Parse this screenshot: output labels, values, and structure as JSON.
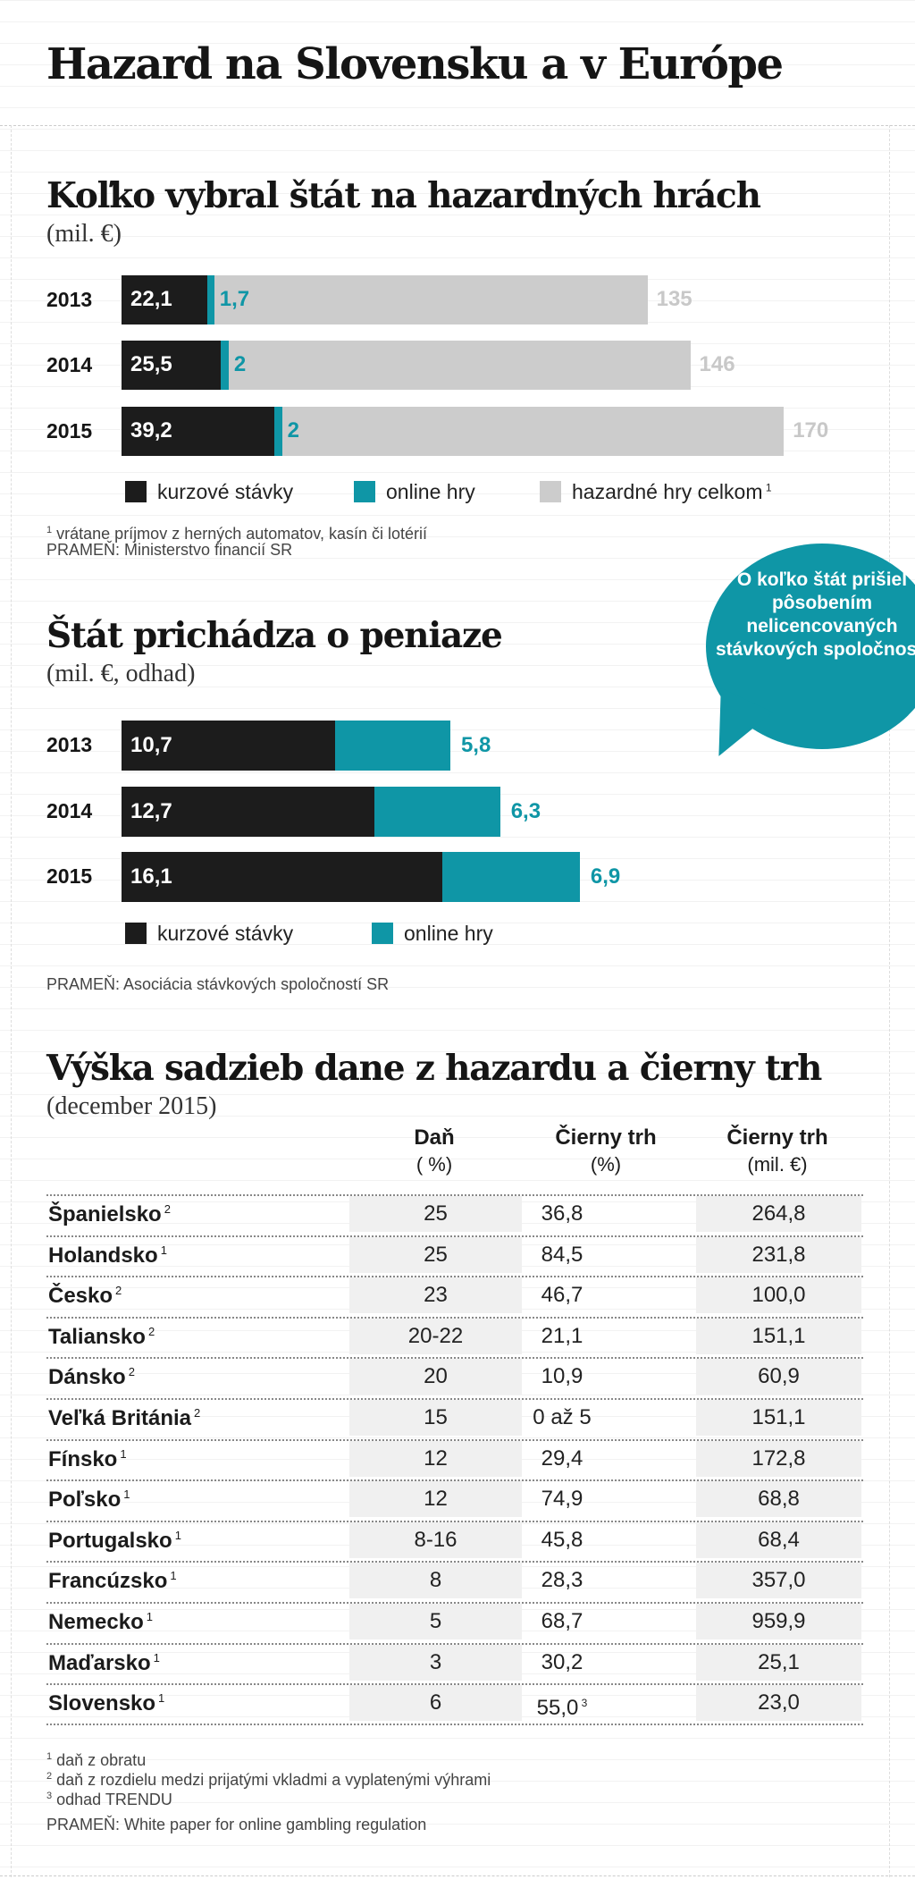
{
  "title": "Hazard na Slovensku a v Európe",
  "chart_data": [
    {
      "type": "bar",
      "title": "Koľko vybral štát na hazardných hrách",
      "subtitle": "(mil. €)",
      "categories": [
        "2013",
        "2014",
        "2015"
      ],
      "series": [
        {
          "name": "kurzové stávky",
          "values": [
            22.1,
            25.5,
            39.2
          ],
          "labels": [
            "22,1",
            "25,5",
            "39,2"
          ],
          "color": "#1c1c1c"
        },
        {
          "name": "online hry",
          "values": [
            1.7,
            2,
            2
          ],
          "labels": [
            "1,7",
            "2",
            "2"
          ],
          "color": "#0f96a6"
        },
        {
          "name": "hazardné hry celkom",
          "values": [
            135,
            146,
            170
          ],
          "labels": [
            "135",
            "146",
            "170"
          ],
          "color": "#cccccc"
        }
      ],
      "legend": [
        {
          "label": "kurzové stávky",
          "color": "#1c1c1c"
        },
        {
          "label": "online hry",
          "color": "#0f96a6"
        },
        {
          "label": "hazardné hry celkom",
          "sup": "1",
          "color": "#cccccc"
        }
      ],
      "notes": [
        "vrátane príjmov z herných automatov, kasín či lotérií"
      ],
      "note_sup": "1",
      "source": "PRAMEŇ: Ministerstvo financií SR"
    },
    {
      "type": "bar",
      "title": "Štát prichádza o peniaze",
      "subtitle": "(mil. €, odhad)",
      "categories": [
        "2013",
        "2014",
        "2015"
      ],
      "series": [
        {
          "name": "kurzové stávky",
          "values": [
            10.7,
            12.7,
            16.1
          ],
          "labels": [
            "10,7",
            "12,7",
            "16,1"
          ],
          "color": "#1c1c1c"
        },
        {
          "name": "online hry",
          "values": [
            5.8,
            6.3,
            6.9
          ],
          "labels": [
            "5,8",
            "6,3",
            "6,9"
          ],
          "color": "#0f96a6"
        }
      ],
      "legend": [
        {
          "label": "kurzové stávky",
          "color": "#1c1c1c"
        },
        {
          "label": "online hry",
          "color": "#0f96a6"
        }
      ],
      "callout": "O koľko štát prišiel pôsobením nelicencovaných stávkových spoločností",
      "source": "PRAMEŇ: Asociácia stávkových spoločností SR"
    },
    {
      "type": "table",
      "title": "Výška sadzieb dane z hazardu a čierny trh",
      "subtitle": "(december 2015)",
      "columns": [
        {
          "name": "Daň",
          "unit": "( %)"
        },
        {
          "name": "Čierny trh",
          "unit": "(%)"
        },
        {
          "name": "Čierny trh",
          "unit": "(mil. €)"
        }
      ],
      "rows": [
        {
          "country": "Španielsko",
          "sup": "2",
          "dan": "25",
          "cierny_pct": "36,8",
          "cierny_mil": "264,8"
        },
        {
          "country": "Holandsko",
          "sup": "1",
          "dan": "25",
          "cierny_pct": "84,5",
          "cierny_mil": "231,8"
        },
        {
          "country": "Česko",
          "sup": "2",
          "dan": "23",
          "cierny_pct": "46,7",
          "cierny_mil": "100,0"
        },
        {
          "country": "Taliansko",
          "sup": "2",
          "dan": "20-22",
          "cierny_pct": "21,1",
          "cierny_mil": "151,1"
        },
        {
          "country": "Dánsko",
          "sup": "2",
          "dan": "20",
          "cierny_pct": "10,9",
          "cierny_mil": "60,9"
        },
        {
          "country": "Veľká Británia",
          "sup": "2",
          "dan": "15",
          "cierny_pct": "0 až 5",
          "cierny_mil": "151,1"
        },
        {
          "country": "Fínsko",
          "sup": "1",
          "dan": "12",
          "cierny_pct": "29,4",
          "cierny_mil": "172,8"
        },
        {
          "country": "Poľsko",
          "sup": "1",
          "dan": "12",
          "cierny_pct": "74,9",
          "cierny_mil": "68,8"
        },
        {
          "country": "Portugalsko",
          "sup": "1",
          "dan": "8-16",
          "cierny_pct": "45,8",
          "cierny_mil": "68,4"
        },
        {
          "country": "Francúzsko",
          "sup": "1",
          "dan": "8",
          "cierny_pct": "28,3",
          "cierny_mil": "357,0"
        },
        {
          "country": "Nemecko",
          "sup": "1",
          "dan": "5",
          "cierny_pct": "68,7",
          "cierny_mil": "959,9"
        },
        {
          "country": "Maďarsko",
          "sup": "1",
          "dan": "3",
          "cierny_pct": "30,2",
          "cierny_mil": "25,1"
        },
        {
          "country": "Slovensko",
          "sup": "1",
          "dan": "6",
          "cierny_pct": "55,0",
          "cierny_pct_sup": "3",
          "cierny_mil": "23,0"
        }
      ],
      "notes": [
        {
          "sup": "1",
          "text": "daň z obratu"
        },
        {
          "sup": "2",
          "text": "daň z rozdielu medzi prijatými vkladmi a vyplatenými výhrami"
        },
        {
          "sup": "3",
          "text": "odhad TRENDU"
        }
      ],
      "source": "PRAMEŇ: White paper for online gambling regulation"
    }
  ]
}
